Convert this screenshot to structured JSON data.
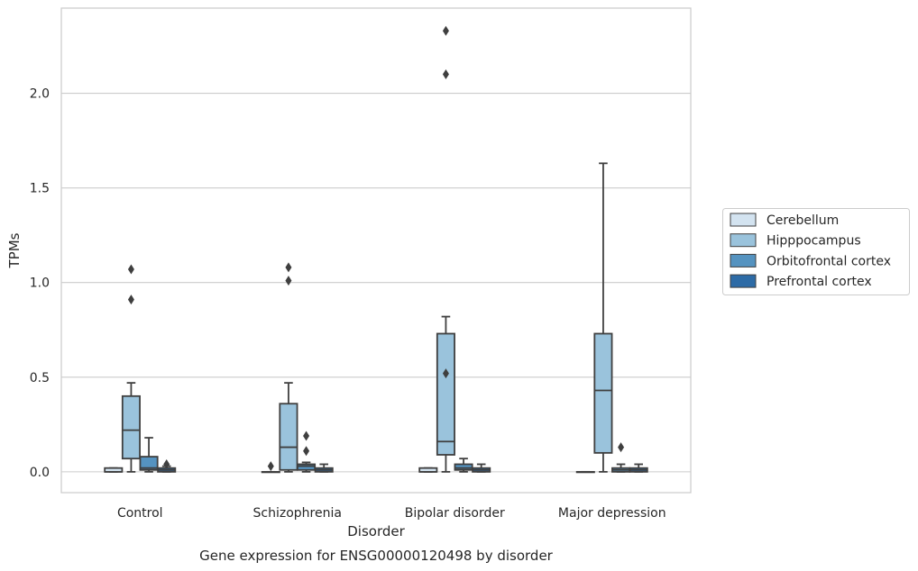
{
  "chart_data": {
    "type": "boxplot",
    "title": "",
    "xlabel": "Disorder",
    "ylabel": "TPMs",
    "caption": "Gene expression for ENSG00000120498 by disorder",
    "categories": [
      "Control",
      "Schizophrenia",
      "Bipolar disorder",
      "Major depression"
    ],
    "ylim": [
      -0.11,
      2.45
    ],
    "yticks": [
      "0.0",
      "0.5",
      "1.0",
      "1.5",
      "2.0"
    ],
    "grid": "horizontal",
    "legend_position": "right",
    "series": [
      {
        "name": "Cerebellum",
        "color": "#d3e3f0",
        "boxes": [
          {
            "whislo": 0.0,
            "q1": 0.0,
            "med": 0.0,
            "q3": 0.02,
            "whishi": 0.02,
            "fliers": []
          },
          {
            "whislo": 0.0,
            "q1": 0.0,
            "med": 0.0,
            "q3": 0.0,
            "whishi": 0.0,
            "fliers": [
              0.03
            ]
          },
          {
            "whislo": 0.0,
            "q1": 0.0,
            "med": 0.0,
            "q3": 0.02,
            "whishi": 0.02,
            "fliers": []
          },
          {
            "whislo": 0.0,
            "q1": 0.0,
            "med": 0.0,
            "q3": 0.0,
            "whishi": 0.0,
            "fliers": []
          }
        ]
      },
      {
        "name": "Hipppocampus",
        "color": "#9ac3dc",
        "boxes": [
          {
            "whislo": 0.0,
            "q1": 0.07,
            "med": 0.22,
            "q3": 0.4,
            "whishi": 0.47,
            "fliers": [
              0.91,
              1.07
            ]
          },
          {
            "whislo": 0.0,
            "q1": 0.01,
            "med": 0.13,
            "q3": 0.36,
            "whishi": 0.47,
            "fliers": [
              1.01,
              1.08
            ]
          },
          {
            "whislo": 0.0,
            "q1": 0.09,
            "med": 0.16,
            "q3": 0.73,
            "whishi": 0.82,
            "fliers": [
              0.52,
              2.1,
              2.33
            ]
          },
          {
            "whislo": 0.0,
            "q1": 0.1,
            "med": 0.43,
            "q3": 0.73,
            "whishi": 1.63,
            "fliers": []
          }
        ]
      },
      {
        "name": "Orbitofrontal cortex",
        "color": "#5593c0",
        "boxes": [
          {
            "whislo": 0.0,
            "q1": 0.01,
            "med": 0.02,
            "q3": 0.08,
            "whishi": 0.18,
            "fliers": []
          },
          {
            "whislo": 0.0,
            "q1": 0.01,
            "med": 0.03,
            "q3": 0.04,
            "whishi": 0.05,
            "fliers": [
              0.11,
              0.19
            ]
          },
          {
            "whislo": 0.0,
            "q1": 0.01,
            "med": 0.02,
            "q3": 0.04,
            "whishi": 0.07,
            "fliers": []
          },
          {
            "whislo": 0.0,
            "q1": 0.0,
            "med": 0.01,
            "q3": 0.02,
            "whishi": 0.04,
            "fliers": [
              0.13
            ]
          }
        ]
      },
      {
        "name": "Prefrontal cortex",
        "color": "#2d6ba6",
        "boxes": [
          {
            "whislo": 0.0,
            "q1": 0.0,
            "med": 0.01,
            "q3": 0.02,
            "whishi": 0.03,
            "fliers": [
              0.04
            ]
          },
          {
            "whislo": 0.0,
            "q1": 0.0,
            "med": 0.01,
            "q3": 0.02,
            "whishi": 0.04,
            "fliers": []
          },
          {
            "whislo": 0.0,
            "q1": 0.0,
            "med": 0.01,
            "q3": 0.02,
            "whishi": 0.04,
            "fliers": []
          },
          {
            "whislo": 0.0,
            "q1": 0.0,
            "med": 0.01,
            "q3": 0.02,
            "whishi": 0.04,
            "fliers": []
          }
        ]
      }
    ]
  }
}
